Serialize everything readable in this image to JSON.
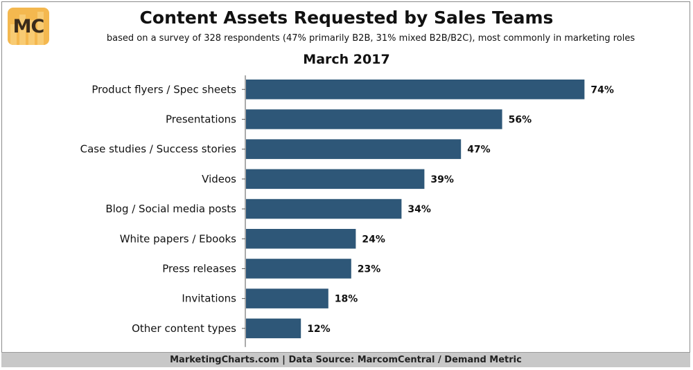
{
  "logo": {
    "text": "MC"
  },
  "title": "Content Assets Requested by Sales Teams",
  "subtitle": "based on a survey of 328 respondents (47% primarily B2B, 31% mixed B2B/B2C), most commonly in marketing roles",
  "period": "March 2017",
  "footer": "MarketingCharts.com | Data Source: MarcomCentral / Demand Metric",
  "colors": {
    "bar": "#2e5778",
    "footer_bg": "#c8c8c8",
    "logo_bg": "#f4b84f"
  },
  "chart_data": {
    "type": "bar",
    "orientation": "horizontal",
    "title": "Content Assets Requested by Sales Teams",
    "subtitle": "March 2017",
    "categories": [
      "Product flyers / Spec sheets",
      "Presentations",
      "Case studies / Success stories",
      "Videos",
      "Blog / Social media posts",
      "White papers / Ebooks",
      "Press releases",
      "Invitations",
      "Other content types"
    ],
    "values": [
      74,
      56,
      47,
      39,
      34,
      24,
      23,
      18,
      12
    ],
    "labels": [
      "74%",
      "56%",
      "47%",
      "39%",
      "34%",
      "24%",
      "23%",
      "18%",
      "12%"
    ],
    "unit": "%",
    "xlim": [
      0,
      100
    ],
    "grid": false,
    "legend": "none"
  }
}
